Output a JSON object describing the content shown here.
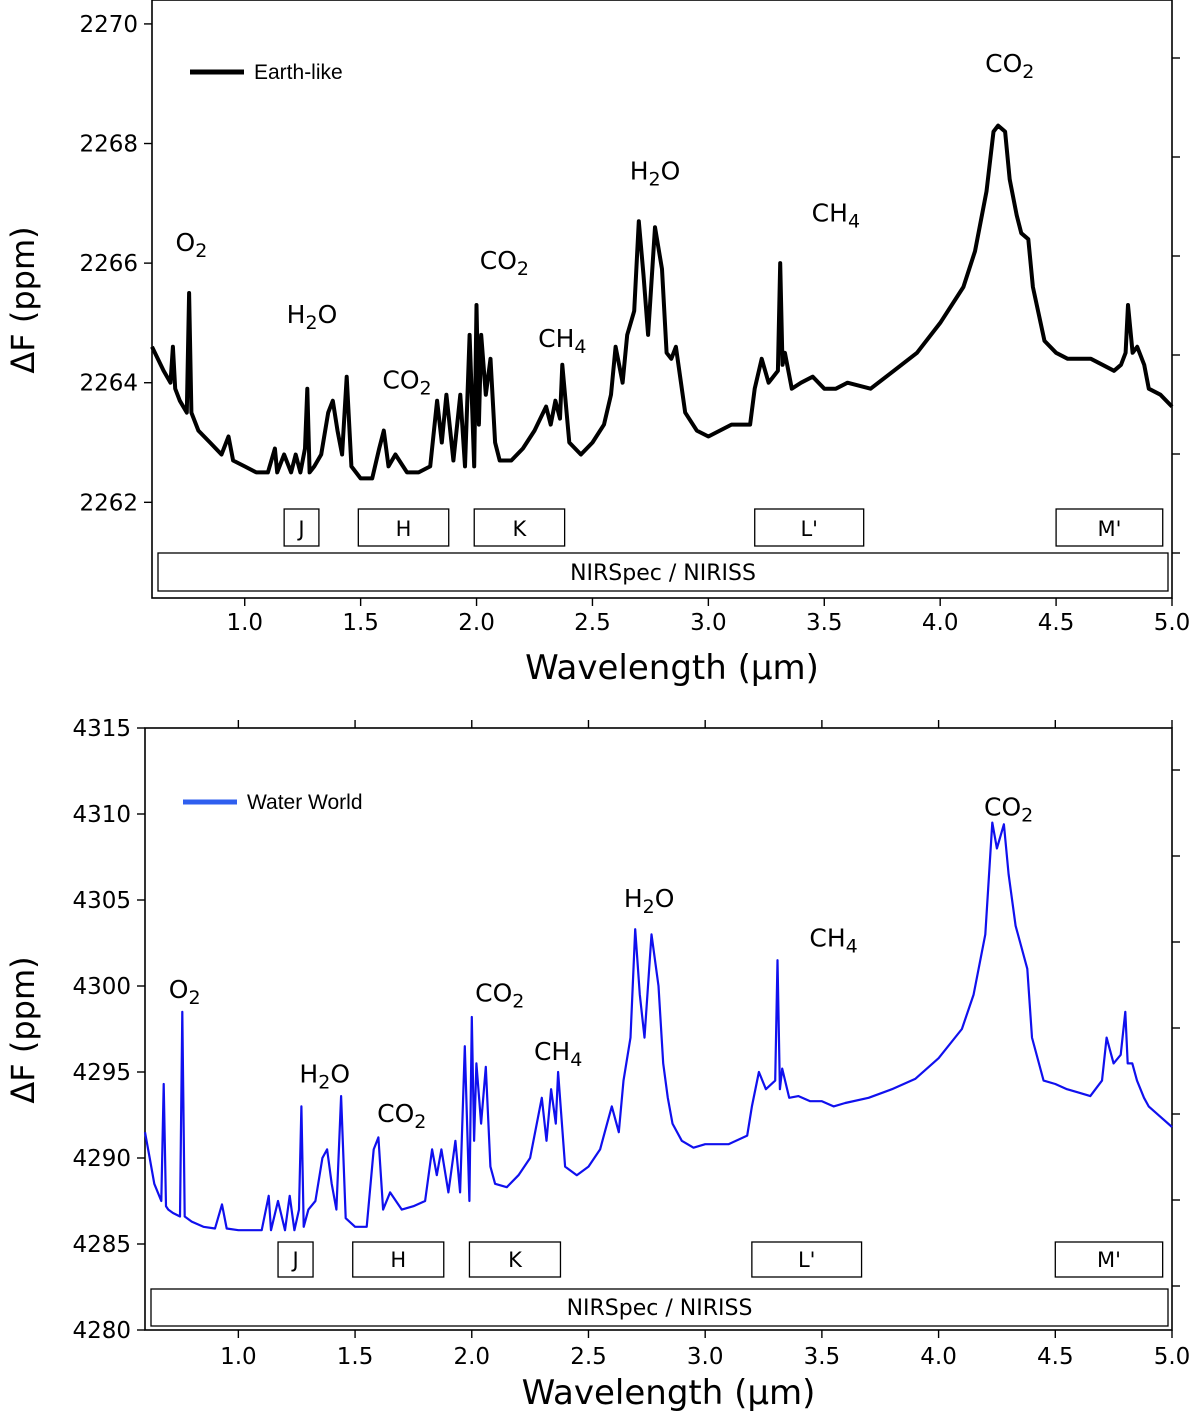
{
  "chart_data": [
    {
      "type": "line",
      "title": "",
      "xlabel": "Wavelength (μm)",
      "ylabel": "ΔF (ppm)",
      "xlim": [
        0.6,
        5.0
      ],
      "ylim": [
        2260.4,
        2270.4
      ],
      "xticks": [
        1.0,
        1.5,
        2.0,
        2.5,
        3.0,
        3.5,
        4.0,
        4.5,
        5.0
      ],
      "xtick_labels": [
        "1.0",
        "1.5",
        "2.0",
        "2.5",
        "3.0",
        "3.5",
        "4.0",
        "4.5",
        "5.0"
      ],
      "yticks": [
        2262,
        2264,
        2266,
        2268,
        2270
      ],
      "ytick_labels": [
        "2262",
        "2264",
        "2266",
        "2268",
        "2270"
      ],
      "legend": {
        "label": "Earth-like",
        "position": "top-left"
      },
      "series": [
        {
          "name": "Earth-like",
          "color": "#000000",
          "x": [
            0.6,
            0.65,
            0.68,
            0.69,
            0.7,
            0.72,
            0.75,
            0.76,
            0.77,
            0.8,
            0.85,
            0.9,
            0.93,
            0.95,
            1.0,
            1.05,
            1.1,
            1.13,
            1.14,
            1.17,
            1.2,
            1.22,
            1.24,
            1.26,
            1.27,
            1.28,
            1.3,
            1.33,
            1.36,
            1.38,
            1.4,
            1.42,
            1.44,
            1.46,
            1.5,
            1.55,
            1.58,
            1.6,
            1.62,
            1.65,
            1.7,
            1.75,
            1.8,
            1.83,
            1.85,
            1.87,
            1.9,
            1.93,
            1.95,
            1.97,
            1.99,
            2.0,
            2.01,
            2.02,
            2.04,
            2.06,
            2.08,
            2.1,
            2.15,
            2.2,
            2.25,
            2.3,
            2.32,
            2.34,
            2.36,
            2.37,
            2.4,
            2.45,
            2.5,
            2.55,
            2.58,
            2.6,
            2.63,
            2.65,
            2.68,
            2.7,
            2.72,
            2.74,
            2.77,
            2.8,
            2.82,
            2.84,
            2.86,
            2.9,
            2.95,
            3.0,
            3.1,
            3.18,
            3.2,
            3.23,
            3.26,
            3.3,
            3.31,
            3.32,
            3.33,
            3.36,
            3.4,
            3.45,
            3.5,
            3.55,
            3.6,
            3.7,
            3.8,
            3.9,
            4.0,
            4.1,
            4.15,
            4.2,
            4.23,
            4.25,
            4.28,
            4.3,
            4.33,
            4.35,
            4.38,
            4.4,
            4.45,
            4.5,
            4.55,
            4.6,
            4.65,
            4.7,
            4.75,
            4.78,
            4.8,
            4.81,
            4.83,
            4.85,
            4.88,
            4.9,
            4.95,
            5.0
          ],
          "y": [
            2264.6,
            2264.2,
            2264.0,
            2264.6,
            2263.9,
            2263.7,
            2263.5,
            2265.5,
            2263.5,
            2263.2,
            2263.0,
            2262.8,
            2263.1,
            2262.7,
            2262.6,
            2262.5,
            2262.5,
            2262.9,
            2262.5,
            2262.8,
            2262.5,
            2262.8,
            2262.5,
            2262.9,
            2263.9,
            2262.5,
            2262.6,
            2262.8,
            2263.5,
            2263.7,
            2263.2,
            2262.8,
            2264.1,
            2262.6,
            2262.4,
            2262.4,
            2262.9,
            2263.2,
            2262.6,
            2262.8,
            2262.5,
            2262.5,
            2262.6,
            2263.7,
            2263.0,
            2263.8,
            2262.7,
            2263.8,
            2262.6,
            2264.8,
            2262.6,
            2265.3,
            2263.3,
            2264.8,
            2263.8,
            2264.4,
            2263.0,
            2262.7,
            2262.7,
            2262.9,
            2263.2,
            2263.6,
            2263.3,
            2263.7,
            2263.4,
            2264.3,
            2263.0,
            2262.8,
            2263.0,
            2263.3,
            2263.8,
            2264.6,
            2264.0,
            2264.8,
            2265.2,
            2266.7,
            2265.8,
            2264.8,
            2266.6,
            2265.9,
            2264.5,
            2264.4,
            2264.6,
            2263.5,
            2263.2,
            2263.1,
            2263.3,
            2263.3,
            2263.9,
            2264.4,
            2264.0,
            2264.2,
            2266.0,
            2264.3,
            2264.5,
            2263.9,
            2264.0,
            2264.1,
            2263.9,
            2263.9,
            2264.0,
            2263.9,
            2264.2,
            2264.5,
            2265.0,
            2265.6,
            2266.2,
            2267.2,
            2268.2,
            2268.3,
            2268.2,
            2267.4,
            2266.8,
            2266.5,
            2266.4,
            2265.6,
            2264.7,
            2264.5,
            2264.4,
            2264.4,
            2264.4,
            2264.3,
            2264.2,
            2264.3,
            2264.5,
            2265.3,
            2264.5,
            2264.6,
            2264.3,
            2263.9,
            2263.8,
            2263.6
          ]
        }
      ],
      "annotations": [
        {
          "species": "O",
          "sub": "2",
          "x": 0.77,
          "y": 2266.2
        },
        {
          "species": "H",
          "sub": "2",
          "rest": "O",
          "x": 1.29,
          "y": 2265.0
        },
        {
          "species": "CO",
          "sub": "2",
          "x": 1.7,
          "y": 2263.9
        },
        {
          "species": "CO",
          "sub": "2",
          "x": 2.12,
          "y": 2265.9
        },
        {
          "species": "CH",
          "sub": "4",
          "x": 2.37,
          "y": 2264.6
        },
        {
          "species": "H",
          "sub": "2",
          "rest": "O",
          "x": 2.77,
          "y": 2267.4
        },
        {
          "species": "CH",
          "sub": "4",
          "x": 3.55,
          "y": 2266.7
        },
        {
          "species": "CO",
          "sub": "2",
          "x": 4.3,
          "y": 2269.2
        }
      ],
      "bands": [
        {
          "label": "J",
          "x0": 1.17,
          "x1": 1.32
        },
        {
          "label": "H",
          "x0": 1.49,
          "x1": 1.88
        },
        {
          "label": "K",
          "x0": 1.99,
          "x1": 2.38
        },
        {
          "label": "L'",
          "x0": 3.2,
          "x1": 3.67
        },
        {
          "label": "M'",
          "x0": 4.5,
          "x1": 4.96
        }
      ],
      "instrument": "NIRSpec  /  NIRISS"
    },
    {
      "type": "line",
      "title": "",
      "xlabel": "Wavelength (μm)",
      "ylabel": "ΔF (ppm)",
      "xlim": [
        0.6,
        5.0
      ],
      "ylim": [
        4280,
        4315
      ],
      "xticks": [
        1.0,
        1.5,
        2.0,
        2.5,
        3.0,
        3.5,
        4.0,
        4.5,
        5.0
      ],
      "xtick_labels": [
        "1.0",
        "1.5",
        "2.0",
        "2.5",
        "3.0",
        "3.5",
        "4.0",
        "4.5",
        "5.0"
      ],
      "yticks": [
        4280,
        4285,
        4290,
        4295,
        4300,
        4305,
        4310,
        4315
      ],
      "ytick_labels": [
        "4280",
        "4285",
        "4290",
        "4295",
        "4300",
        "4305",
        "4310",
        "4315"
      ],
      "legend": {
        "label": "Water World",
        "position": "top-left"
      },
      "series": [
        {
          "name": "Water World",
          "color": "#1010ee",
          "x": [
            0.6,
            0.62,
            0.64,
            0.67,
            0.68,
            0.69,
            0.7,
            0.72,
            0.75,
            0.76,
            0.77,
            0.8,
            0.85,
            0.9,
            0.93,
            0.95,
            1.0,
            1.05,
            1.1,
            1.13,
            1.14,
            1.17,
            1.2,
            1.22,
            1.24,
            1.26,
            1.27,
            1.28,
            1.3,
            1.33,
            1.36,
            1.38,
            1.4,
            1.42,
            1.44,
            1.46,
            1.5,
            1.55,
            1.58,
            1.6,
            1.62,
            1.65,
            1.7,
            1.75,
            1.8,
            1.83,
            1.85,
            1.87,
            1.9,
            1.93,
            1.95,
            1.97,
            1.99,
            2.0,
            2.01,
            2.02,
            2.04,
            2.06,
            2.08,
            2.1,
            2.15,
            2.2,
            2.25,
            2.3,
            2.32,
            2.34,
            2.36,
            2.37,
            2.4,
            2.45,
            2.5,
            2.55,
            2.58,
            2.6,
            2.63,
            2.65,
            2.68,
            2.7,
            2.72,
            2.74,
            2.77,
            2.8,
            2.82,
            2.84,
            2.86,
            2.9,
            2.95,
            3.0,
            3.1,
            3.18,
            3.2,
            3.23,
            3.26,
            3.3,
            3.31,
            3.32,
            3.33,
            3.36,
            3.4,
            3.45,
            3.5,
            3.55,
            3.6,
            3.7,
            3.8,
            3.9,
            4.0,
            4.1,
            4.15,
            4.2,
            4.23,
            4.25,
            4.28,
            4.3,
            4.33,
            4.35,
            4.38,
            4.4,
            4.45,
            4.5,
            4.55,
            4.6,
            4.65,
            4.7,
            4.72,
            4.75,
            4.78,
            4.8,
            4.81,
            4.83,
            4.85,
            4.88,
            4.9,
            4.95,
            5.0
          ],
          "y": [
            4291.5,
            4290.0,
            4288.5,
            4287.5,
            4294.3,
            4287.2,
            4287.0,
            4286.8,
            4286.6,
            4298.5,
            4286.6,
            4286.3,
            4286.0,
            4285.9,
            4287.3,
            4285.9,
            4285.8,
            4285.8,
            4285.8,
            4287.8,
            4285.8,
            4287.5,
            4285.8,
            4287.8,
            4285.8,
            4287.0,
            4293.0,
            4286.0,
            4287.0,
            4287.5,
            4290.0,
            4290.5,
            4288.5,
            4287.0,
            4293.6,
            4286.5,
            4286.0,
            4286.0,
            4290.5,
            4291.2,
            4287.0,
            4288.0,
            4287.0,
            4287.2,
            4287.5,
            4290.5,
            4289.0,
            4290.5,
            4288.0,
            4291.0,
            4288.0,
            4296.5,
            4287.5,
            4298.2,
            4291.0,
            4295.5,
            4292.0,
            4295.3,
            4289.5,
            4288.5,
            4288.3,
            4289.0,
            4290.0,
            4293.5,
            4291.0,
            4294.0,
            4292.0,
            4295.0,
            4289.5,
            4289.0,
            4289.5,
            4290.5,
            4292.0,
            4293.0,
            4291.5,
            4294.5,
            4297.0,
            4303.3,
            4299.5,
            4297.0,
            4303.0,
            4300.0,
            4295.5,
            4293.5,
            4292.0,
            4291.0,
            4290.6,
            4290.8,
            4290.8,
            4291.3,
            4293.0,
            4295.0,
            4294.0,
            4294.5,
            4301.5,
            4294.0,
            4295.2,
            4293.5,
            4293.6,
            4293.3,
            4293.3,
            4293.0,
            4293.2,
            4293.5,
            4294.0,
            4294.6,
            4295.8,
            4297.5,
            4299.5,
            4303.0,
            4309.5,
            4308.0,
            4309.4,
            4306.5,
            4303.5,
            4302.5,
            4301.0,
            4297.0,
            4294.5,
            4294.3,
            4294.0,
            4293.8,
            4293.6,
            4294.5,
            4297.0,
            4295.5,
            4296.0,
            4298.5,
            4295.5,
            4295.5,
            4294.5,
            4293.5,
            4293.0,
            4292.4,
            4291.8
          ]
        }
      ],
      "annotations": [
        {
          "species": "O",
          "sub": "2",
          "x": 0.77,
          "y": 4299.3
        },
        {
          "species": "H",
          "sub": "2",
          "rest": "O",
          "x": 1.37,
          "y": 4294.4
        },
        {
          "species": "CO",
          "sub": "2",
          "x": 1.7,
          "y": 4292.1
        },
        {
          "species": "CO",
          "sub": "2",
          "x": 2.12,
          "y": 4299.1
        },
        {
          "species": "CH",
          "sub": "4",
          "x": 2.37,
          "y": 4295.7
        },
        {
          "species": "H",
          "sub": "2",
          "rest": "O",
          "x": 2.76,
          "y": 4304.6
        },
        {
          "species": "CH",
          "sub": "4",
          "x": 3.55,
          "y": 4302.3
        },
        {
          "species": "CO",
          "sub": "2",
          "x": 4.3,
          "y": 4309.9
        }
      ],
      "bands": [
        {
          "label": "J",
          "x0": 1.17,
          "x1": 1.32
        },
        {
          "label": "H",
          "x0": 1.49,
          "x1": 1.88
        },
        {
          "label": "K",
          "x0": 1.99,
          "x1": 2.38
        },
        {
          "label": "L'",
          "x0": 3.2,
          "x1": 3.67
        },
        {
          "label": "M'",
          "x0": 4.5,
          "x1": 4.96
        }
      ],
      "instrument": "NIRSpec  /  NIRISS"
    }
  ]
}
